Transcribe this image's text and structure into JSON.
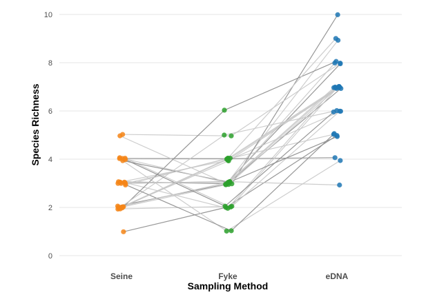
{
  "chart_data": {
    "type": "scatter",
    "title": "",
    "xlabel": "Sampling Method",
    "ylabel": "Species Richness",
    "categories": [
      "Seine",
      "Fyke",
      "eDNA"
    ],
    "ylim": [
      0,
      10
    ],
    "yticks": [
      0,
      2,
      4,
      6,
      8,
      10
    ],
    "grid": true,
    "legend": "none",
    "colors": {
      "Seine": "#f58518",
      "Fyke": "#2ca02c",
      "eDNA": "#1f77b4",
      "line_dark": "#8c8c8c",
      "line_light": "#c8c8c8"
    },
    "samples": [
      {
        "Seine": 1,
        "Fyke": 2,
        "eDNA": 5
      },
      {
        "Seine": 2,
        "Fyke": 4,
        "eDNA": 7
      },
      {
        "Seine": 2,
        "Fyke": 2,
        "eDNA": 6
      },
      {
        "Seine": 2,
        "Fyke": 3,
        "eDNA": 8
      },
      {
        "Seine": 2,
        "Fyke": 4,
        "eDNA": 5
      },
      {
        "Seine": 2,
        "Fyke": 3,
        "eDNA": 9
      },
      {
        "Seine": 3,
        "Fyke": 3,
        "eDNA": 7
      },
      {
        "Seine": 3,
        "Fyke": 2,
        "eDNA": 7
      },
      {
        "Seine": 3,
        "Fyke": 4,
        "eDNA": 6
      },
      {
        "Seine": 3,
        "Fyke": 3,
        "eDNA": 10
      },
      {
        "Seine": 3,
        "Fyke": 3,
        "eDNA": 3
      },
      {
        "Seine": 3,
        "Fyke": 4,
        "eDNA": 7
      },
      {
        "Seine": 4,
        "Fyke": 4,
        "eDNA": 4
      },
      {
        "Seine": 4,
        "Fyke": 2,
        "eDNA": 7
      },
      {
        "Seine": 4,
        "Fyke": 1,
        "eDNA": 4
      },
      {
        "Seine": 4,
        "Fyke": 3,
        "eDNA": 5
      },
      {
        "Seine": 5,
        "Fyke": 5,
        "eDNA": 8
      },
      {
        "Seine": 5,
        "Fyke": 3,
        "eDNA": 7
      },
      {
        "Seine": 2,
        "Fyke": 6,
        "eDNA": 8
      },
      {
        "Seine": 4,
        "Fyke": 3,
        "eDNA": 7
      },
      {
        "Seine": 2,
        "Fyke": 5,
        "eDNA": 6
      },
      {
        "Seine": 3,
        "Fyke": 1,
        "eDNA": 5
      },
      {
        "Seine": 3,
        "Fyke": 4,
        "eDNA": 9
      },
      {
        "Seine": 2,
        "Fyke": 3,
        "eDNA": 7
      },
      {
        "Seine": 4,
        "Fyke": 2,
        "eDNA": 6
      },
      {
        "Seine": 3,
        "Fyke": 3,
        "eDNA": 8
      },
      {
        "Seine": 2,
        "Fyke": 4,
        "eDNA": 7
      }
    ]
  }
}
